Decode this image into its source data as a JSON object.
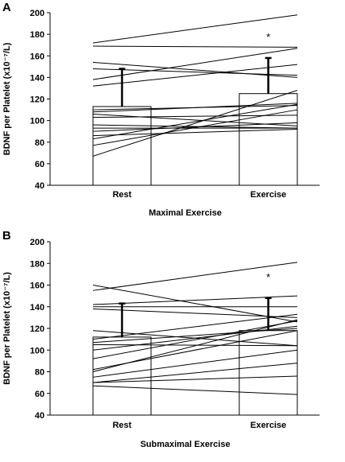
{
  "chart_data": [
    {
      "panel": "A",
      "type": "bar",
      "categories": [
        "Rest",
        "Exercise"
      ],
      "values": [
        113,
        125
      ],
      "error_upper": [
        148,
        158
      ],
      "xlabel": "Maximal Exercise",
      "ylabel": "BDNF per Platelet (x10⁻⁷/L)",
      "ylim": [
        40,
        200
      ],
      "yticks": [
        "40",
        "60",
        "80",
        "100",
        "120",
        "140",
        "160",
        "180",
        "200"
      ],
      "annotation": "*",
      "individual_lines": [
        [
          172,
          198
        ],
        [
          169,
          168
        ],
        [
          154,
          140
        ],
        [
          148,
          142
        ],
        [
          138,
          167
        ],
        [
          132,
          152
        ],
        [
          110,
          114
        ],
        [
          108,
          116
        ],
        [
          106,
          95
        ],
        [
          103,
          105
        ],
        [
          96,
          93
        ],
        [
          93,
          93
        ],
        [
          90,
          98
        ],
        [
          86,
          92
        ],
        [
          83,
          115
        ],
        [
          77,
          110
        ],
        [
          67,
          128
        ]
      ]
    },
    {
      "panel": "B",
      "type": "bar",
      "categories": [
        "Rest",
        "Exercise"
      ],
      "values": [
        112,
        118
      ],
      "error_upper": [
        143,
        148
      ],
      "xlabel": "Submaximal Exercise",
      "ylabel": "BDNF per Platelet (x10⁻⁷/L)",
      "ylim": [
        40,
        200
      ],
      "yticks": [
        "40",
        "60",
        "80",
        "100",
        "120",
        "140",
        "160",
        "180",
        "200"
      ],
      "annotation": "*",
      "individual_lines": [
        [
          160,
          126
        ],
        [
          155,
          181
        ],
        [
          142,
          150
        ],
        [
          140,
          140
        ],
        [
          138,
          130
        ],
        [
          118,
          104
        ],
        [
          110,
          133
        ],
        [
          107,
          120
        ],
        [
          105,
          104
        ],
        [
          100,
          122
        ],
        [
          92,
          127
        ],
        [
          82,
          118
        ],
        [
          80,
          128
        ],
        [
          75,
          100
        ],
        [
          70,
          88
        ],
        [
          70,
          76
        ],
        [
          67,
          59
        ]
      ]
    }
  ]
}
